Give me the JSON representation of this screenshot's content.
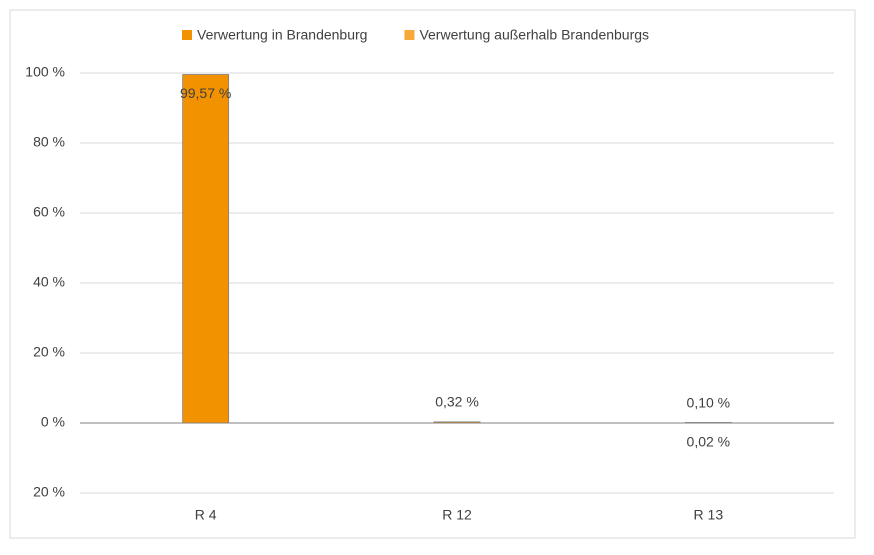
{
  "chart_data": {
    "type": "bar",
    "stacked": true,
    "categories": [
      "R 4",
      "R 12",
      "R 13"
    ],
    "series": [
      {
        "name": "Verwertung in Brandenburg",
        "color": "#f39200",
        "values": [
          99.57,
          0.32,
          0.1
        ],
        "value_labels": [
          "99,57 %",
          "0,32 %",
          "0,10 %"
        ]
      },
      {
        "name": "Verwertung außerhalb Brandenburgs",
        "color": "#f6a83a",
        "values": [
          null,
          null,
          0.02
        ],
        "value_labels": [
          null,
          null,
          "0,02 %"
        ]
      }
    ],
    "ylim": [
      -20,
      100
    ],
    "yticks": [
      {
        "value": -20,
        "label": "20 %"
      },
      {
        "value": 0,
        "label": "0 %"
      },
      {
        "value": 20,
        "label": "20 %"
      },
      {
        "value": 40,
        "label": "40 %"
      },
      {
        "value": 60,
        "label": "60 %"
      },
      {
        "value": 80,
        "label": "80 %"
      },
      {
        "value": 100,
        "label": "100 %"
      }
    ],
    "grid": true,
    "legend": "top"
  }
}
